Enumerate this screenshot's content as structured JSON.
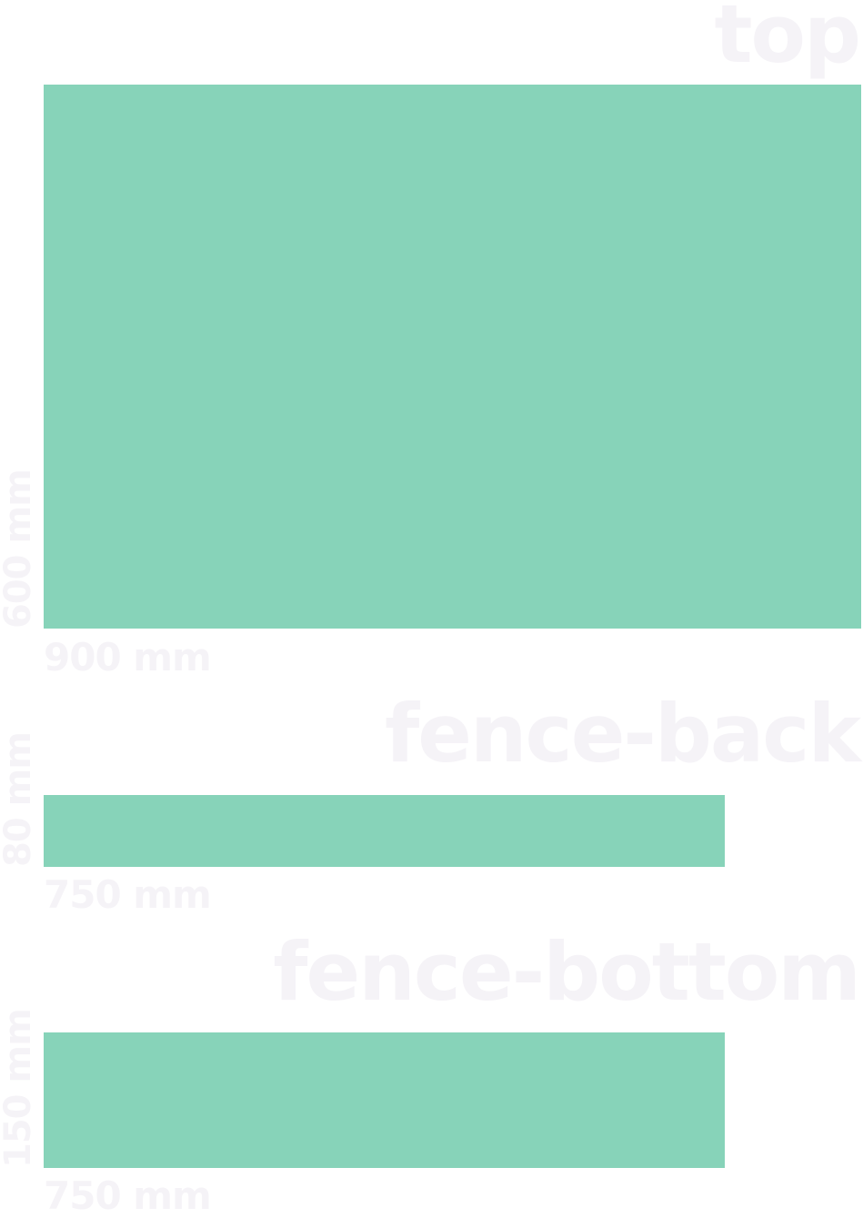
{
  "colors": {
    "panel": "#87d3b9",
    "label": "#f5f3f7",
    "background": "#ffffff"
  },
  "parts": [
    {
      "name": "top",
      "width_label": "900 mm",
      "height_label": "600 mm",
      "width_mm": 900,
      "height_mm": 600
    },
    {
      "name": "fence-back",
      "width_label": "750 mm",
      "height_label": "80 mm",
      "width_mm": 750,
      "height_mm": 80
    },
    {
      "name": "fence-bottom",
      "width_label": "750 mm",
      "height_label": "150 mm",
      "width_mm": 750,
      "height_mm": 150
    }
  ]
}
